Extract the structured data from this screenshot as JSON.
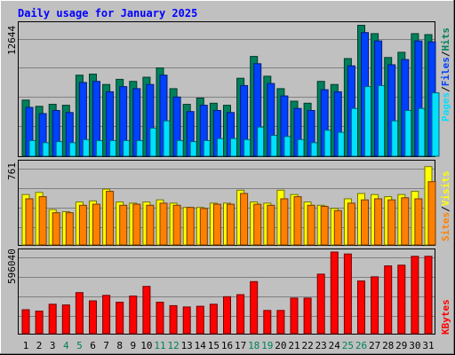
{
  "title": "Daily usage for January 2025",
  "colors": {
    "background": "#c0c0c0",
    "title": "#0000ff",
    "hits": "#00805c",
    "files": "#0040ff",
    "pages": "#00e0ff",
    "visits": "#ffff00",
    "sites": "#ff8000",
    "kbytes": "#ff0000",
    "weekend_day": "#00805c",
    "weekday_day": "#000000"
  },
  "legends": {
    "hits_panel": [
      "Pages",
      "Files",
      "Hits"
    ],
    "visits_panel": [
      "Sites",
      "Visits"
    ],
    "kbytes_panel": [
      "KBytes"
    ],
    "separator": "/"
  },
  "axis_max_labels": {
    "hits_panel": "12644",
    "visits_panel": "761",
    "kbytes_panel": "596040"
  },
  "chart_data": [
    {
      "type": "bar",
      "title": "Daily usage for January 2025",
      "categories": [
        "1",
        "2",
        "3",
        "4",
        "5",
        "6",
        "7",
        "8",
        "9",
        "10",
        "11",
        "12",
        "13",
        "14",
        "15",
        "16",
        "17",
        "18",
        "19",
        "20",
        "21",
        "22",
        "23",
        "24",
        "25",
        "26",
        "27",
        "28",
        "29",
        "30",
        "31"
      ],
      "weekend_days": [
        "4",
        "5",
        "11",
        "12",
        "18",
        "19",
        "25",
        "26"
      ],
      "ylim": [
        0,
        12644
      ],
      "series": [
        {
          "name": "Hits",
          "values": [
            5400,
            4800,
            5000,
            4900,
            7800,
            7900,
            6900,
            7400,
            7200,
            7600,
            8500,
            6500,
            5000,
            5600,
            5100,
            4900,
            7500,
            9600,
            7700,
            6500,
            5300,
            5100,
            7200,
            6900,
            9400,
            12600,
            11800,
            9500,
            10000,
            11800,
            11700
          ]
        },
        {
          "name": "Files",
          "values": [
            4700,
            4100,
            4400,
            4200,
            7100,
            7200,
            6200,
            6700,
            6500,
            6900,
            7800,
            5700,
            4300,
            4900,
            4400,
            4200,
            6800,
            8900,
            7000,
            5800,
            4600,
            4400,
            6400,
            6200,
            8700,
            11900,
            11100,
            8800,
            9300,
            11100,
            11000
          ]
        },
        {
          "name": "Pages",
          "values": [
            1500,
            1300,
            1400,
            1300,
            1600,
            1500,
            1500,
            1500,
            1500,
            2700,
            3400,
            1500,
            1400,
            1500,
            1700,
            1700,
            1600,
            2800,
            2000,
            1900,
            1600,
            1300,
            2500,
            2300,
            4600,
            6700,
            6800,
            3400,
            4400,
            4600,
            6100
          ]
        }
      ]
    },
    {
      "type": "bar",
      "categories": [
        "1",
        "2",
        "3",
        "4",
        "5",
        "6",
        "7",
        "8",
        "9",
        "10",
        "11",
        "12",
        "13",
        "14",
        "15",
        "16",
        "17",
        "18",
        "19",
        "20",
        "21",
        "22",
        "23",
        "24",
        "25",
        "26",
        "27",
        "28",
        "29",
        "30",
        "31"
      ],
      "ylim": [
        0,
        761
      ],
      "series": [
        {
          "name": "Visits",
          "values": [
            470,
            490,
            330,
            310,
            400,
            410,
            520,
            400,
            390,
            400,
            420,
            390,
            350,
            350,
            390,
            390,
            510,
            400,
            390,
            510,
            470,
            400,
            370,
            340,
            430,
            480,
            470,
            450,
            470,
            500,
            730
          ]
        },
        {
          "name": "Sites",
          "values": [
            430,
            450,
            300,
            300,
            370,
            380,
            500,
            370,
            380,
            370,
            390,
            370,
            350,
            340,
            380,
            380,
            480,
            380,
            370,
            430,
            450,
            370,
            360,
            320,
            390,
            420,
            430,
            420,
            440,
            430,
            590
          ]
        }
      ]
    },
    {
      "type": "bar",
      "categories": [
        "1",
        "2",
        "3",
        "4",
        "5",
        "6",
        "7",
        "8",
        "9",
        "10",
        "11",
        "12",
        "13",
        "14",
        "15",
        "16",
        "17",
        "18",
        "19",
        "20",
        "21",
        "22",
        "23",
        "24",
        "25",
        "26",
        "27",
        "28",
        "29",
        "30",
        "31"
      ],
      "ylim": [
        0,
        596040
      ],
      "series": [
        {
          "name": "KBytes",
          "values": [
            175000,
            165000,
            215000,
            210000,
            300000,
            240000,
            280000,
            230000,
            275000,
            345000,
            230000,
            205000,
            195000,
            200000,
            215000,
            270000,
            285000,
            380000,
            170000,
            170000,
            260000,
            260000,
            435000,
            596040,
            582000,
            385000,
            415000,
            495000,
            500000,
            565000,
            565000
          ]
        }
      ]
    }
  ]
}
